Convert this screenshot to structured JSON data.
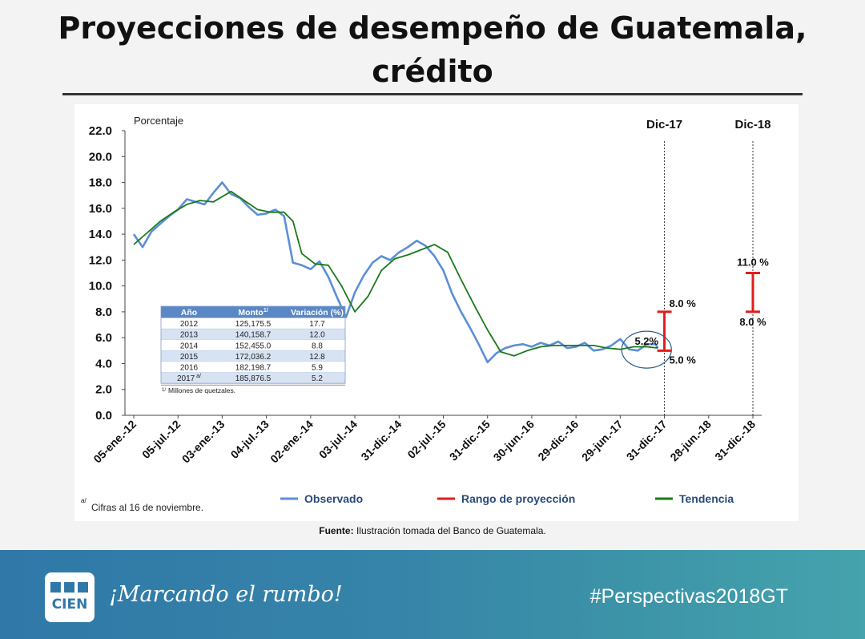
{
  "slide": {
    "title_line1": "Proyecciones de desempeño de Guatemala,",
    "title_line2": "crédito"
  },
  "source": {
    "label": "Fuente:",
    "text": "Ilustración tomada del Banco de Guatemala."
  },
  "footer": {
    "logo_top": "■■■",
    "logo_bottom": "CIEN",
    "slogan": "¡Marcando el rumbo!",
    "hashtag": "#Perspectivas2018GT"
  },
  "colors": {
    "observed": "#5b8fd6",
    "trend": "#1a7a1a",
    "range": "#e01e1e",
    "table_header": "#5a87c6",
    "table_alt": "#d7e3f3"
  },
  "chart_data": {
    "type": "line",
    "ylabel": "Porcentaje",
    "ylim": [
      0,
      22
    ],
    "yticks": [
      "22.0",
      "20.0",
      "18.0",
      "16.0",
      "14.0",
      "12.0",
      "10.0",
      "8.0",
      "6.0",
      "4.0",
      "2.0",
      "0.0"
    ],
    "x_categories": [
      "05-ene.-12",
      "05-jul.-12",
      "03-ene.-13",
      "04-jul.-13",
      "02-ene.-14",
      "03-jul.-14",
      "31-dic.-14",
      "02-jul.-15",
      "31-dic.-15",
      "30-jun.-16",
      "29-dic.-16",
      "29-jun.-17",
      "31-dic.-17",
      "28-jun.-18",
      "31-dic.-18"
    ],
    "markers": [
      {
        "label": "Dic-17",
        "x_index": 12
      },
      {
        "label": "Dic-18",
        "x_index": 14
      }
    ],
    "series": [
      {
        "name": "Observado",
        "x": [
          0,
          0.2,
          0.4,
          0.6,
          0.8,
          1.0,
          1.2,
          1.4,
          1.6,
          1.8,
          2.0,
          2.2,
          2.4,
          2.6,
          2.8,
          3.0,
          3.2,
          3.4,
          3.6,
          3.8,
          4.0,
          4.2,
          4.4,
          4.6,
          4.8,
          5.0,
          5.2,
          5.4,
          5.6,
          5.8,
          6.0,
          6.2,
          6.4,
          6.6,
          6.8,
          7.0,
          7.2,
          7.4,
          7.6,
          7.8,
          8.0,
          8.2,
          8.4,
          8.6,
          8.8,
          9.0,
          9.2,
          9.4,
          9.6,
          9.8,
          10.0,
          10.2,
          10.4,
          10.6,
          10.8,
          11.0,
          11.2,
          11.4,
          11.6,
          11.8,
          11.85
        ],
        "values": [
          14.0,
          13.0,
          14.2,
          14.8,
          15.4,
          15.9,
          16.7,
          16.5,
          16.3,
          17.2,
          18.0,
          17.1,
          16.8,
          16.1,
          15.5,
          15.6,
          15.9,
          15.4,
          11.8,
          11.6,
          11.3,
          11.9,
          10.7,
          9.1,
          7.6,
          9.5,
          10.8,
          11.8,
          12.3,
          12.0,
          12.6,
          13.0,
          13.5,
          13.1,
          12.3,
          11.2,
          9.4,
          8.0,
          6.8,
          5.5,
          4.1,
          4.8,
          5.2,
          5.4,
          5.5,
          5.3,
          5.6,
          5.4,
          5.7,
          5.2,
          5.3,
          5.6,
          5.0,
          5.1,
          5.4,
          5.9,
          5.1,
          5.0,
          5.5,
          5.5,
          5.2
        ]
      },
      {
        "name": "Tendencia",
        "x": [
          0,
          0.3,
          0.6,
          0.9,
          1.2,
          1.5,
          1.8,
          2.0,
          2.2,
          2.5,
          2.8,
          3.1,
          3.4,
          3.6,
          3.8,
          4.1,
          4.4,
          4.7,
          5.0,
          5.3,
          5.6,
          5.9,
          6.2,
          6.5,
          6.8,
          7.1,
          7.4,
          7.7,
          8.0,
          8.3,
          8.6,
          8.9,
          9.2,
          9.5,
          9.8,
          10.1,
          10.4,
          10.7,
          11.0,
          11.3,
          11.6,
          11.85
        ],
        "values": [
          13.2,
          14.1,
          15.0,
          15.7,
          16.3,
          16.6,
          16.5,
          16.9,
          17.3,
          16.6,
          15.9,
          15.7,
          15.7,
          15.0,
          12.5,
          11.7,
          11.6,
          10.0,
          8.0,
          9.2,
          11.2,
          12.1,
          12.4,
          12.8,
          13.2,
          12.6,
          10.5,
          8.5,
          6.6,
          4.9,
          4.6,
          5.0,
          5.3,
          5.4,
          5.4,
          5.4,
          5.4,
          5.2,
          5.1,
          5.3,
          5.3,
          5.2
        ]
      }
    ],
    "ranges": [
      {
        "name": "Rango de proyección Dic-17",
        "x_index": 12,
        "high": 8.0,
        "low": 5.0,
        "high_label": "8.0 %",
        "low_label": "5.0 %"
      },
      {
        "name": "Rango de proyección Dic-18",
        "x_index": 14,
        "high": 11.0,
        "low": 8.0,
        "high_label": "11.0 %",
        "low_label": "8.0 %"
      }
    ],
    "callout": {
      "label": "5.2%",
      "x_index": 11.85,
      "value": 5.2
    },
    "legend": [
      {
        "label": "Observado",
        "key": "observed"
      },
      {
        "label": "Rango de proyección",
        "key": "range"
      },
      {
        "label": "Tendencia",
        "key": "trend"
      }
    ],
    "footnote": "Cifras al 16 de noviembre.",
    "footnote_mark": "a/",
    "table": {
      "headers": [
        "Año",
        "Monto",
        "Variación (%)"
      ],
      "header_monto_note": "1/",
      "rows": [
        {
          "year": "2012",
          "monto": "125,175.5",
          "var": "17.7"
        },
        {
          "year": "2013",
          "monto": "140,158.7",
          "var": "12.0"
        },
        {
          "year": "2014",
          "monto": "152,455.0",
          "var": "8.8"
        },
        {
          "year": "2015",
          "monto": "172,036.2",
          "var": "12.8"
        },
        {
          "year": "2016",
          "monto": "182,198.7",
          "var": "5.9"
        },
        {
          "year": "2017",
          "year_note": "a/",
          "monto": "185,876.5",
          "var": "5.2"
        }
      ],
      "note_mark": "1/",
      "note": "Millones de quetzales."
    }
  }
}
